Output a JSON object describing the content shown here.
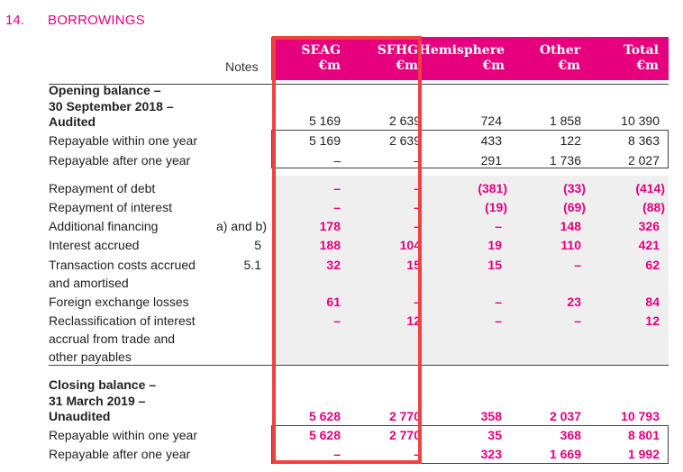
{
  "section": {
    "number": "14.",
    "title": "BORROWINGS"
  },
  "columns": {
    "notes": "Notes",
    "seag": [
      "SEAG",
      "€m"
    ],
    "sfhg": [
      "SFHG",
      "€m"
    ],
    "hemisphere": [
      "Hemisphere",
      "€m"
    ],
    "other": [
      "Other",
      "€m"
    ],
    "total": [
      "Total",
      "€m"
    ]
  },
  "opening": {
    "label": [
      "Opening balance –",
      "30 September 2018 –",
      "Audited"
    ],
    "values": [
      "5 169",
      "2 639",
      "724",
      "1 858",
      "10 390"
    ],
    "within": {
      "label": "Repayable within one year",
      "values": [
        "5 169",
        "2 639",
        "433",
        "122",
        "8 363"
      ]
    },
    "after": {
      "label": "Repayable after one year",
      "values": [
        "–",
        "–",
        "291",
        "1 736",
        "2 027"
      ]
    }
  },
  "movements": [
    {
      "label": [
        "Repayment of debt"
      ],
      "note": "",
      "values": [
        "–",
        "–",
        "(381)",
        "(33)",
        "(414)"
      ]
    },
    {
      "label": [
        "Repayment of interest"
      ],
      "note": "",
      "values": [
        "–",
        "–",
        "(19)",
        "(69)",
        "(88)"
      ]
    },
    {
      "label": [
        "Additional financing"
      ],
      "note": "a) and b)",
      "values": [
        "178",
        "–",
        "–",
        "148",
        "326"
      ]
    },
    {
      "label": [
        "Interest accrued"
      ],
      "note": "5",
      "values": [
        "188",
        "104",
        "19",
        "110",
        "421"
      ]
    },
    {
      "label": [
        "Transaction costs accrued",
        "and amortised"
      ],
      "note": "5.1",
      "values": [
        "32",
        "15",
        "15",
        "–",
        "62"
      ]
    },
    {
      "label": [
        "Foreign exchange losses"
      ],
      "note": "",
      "values": [
        "61",
        "–",
        "–",
        "23",
        "84"
      ]
    },
    {
      "label": [
        "Reclassification of interest",
        "accrual from trade and",
        "other payables"
      ],
      "note": "",
      "values": [
        "–",
        "12",
        "–",
        "–",
        "12"
      ]
    }
  ],
  "closing": {
    "label": [
      "Closing balance –",
      "31 March 2019 –",
      "Unaudited"
    ],
    "values": [
      "5 628",
      "2 770",
      "358",
      "2 037",
      "10 793"
    ],
    "within": {
      "label": "Repayable within one year",
      "values": [
        "5 628",
        "2 770",
        "35",
        "368",
        "8 801"
      ]
    },
    "after": {
      "label": "Repayable after one year",
      "values": [
        "–",
        "–",
        "323",
        "1 669",
        "1 992"
      ]
    }
  },
  "colors": {
    "brand": "#e6007e",
    "highlight": "#f04040",
    "shade": "#efefef"
  }
}
